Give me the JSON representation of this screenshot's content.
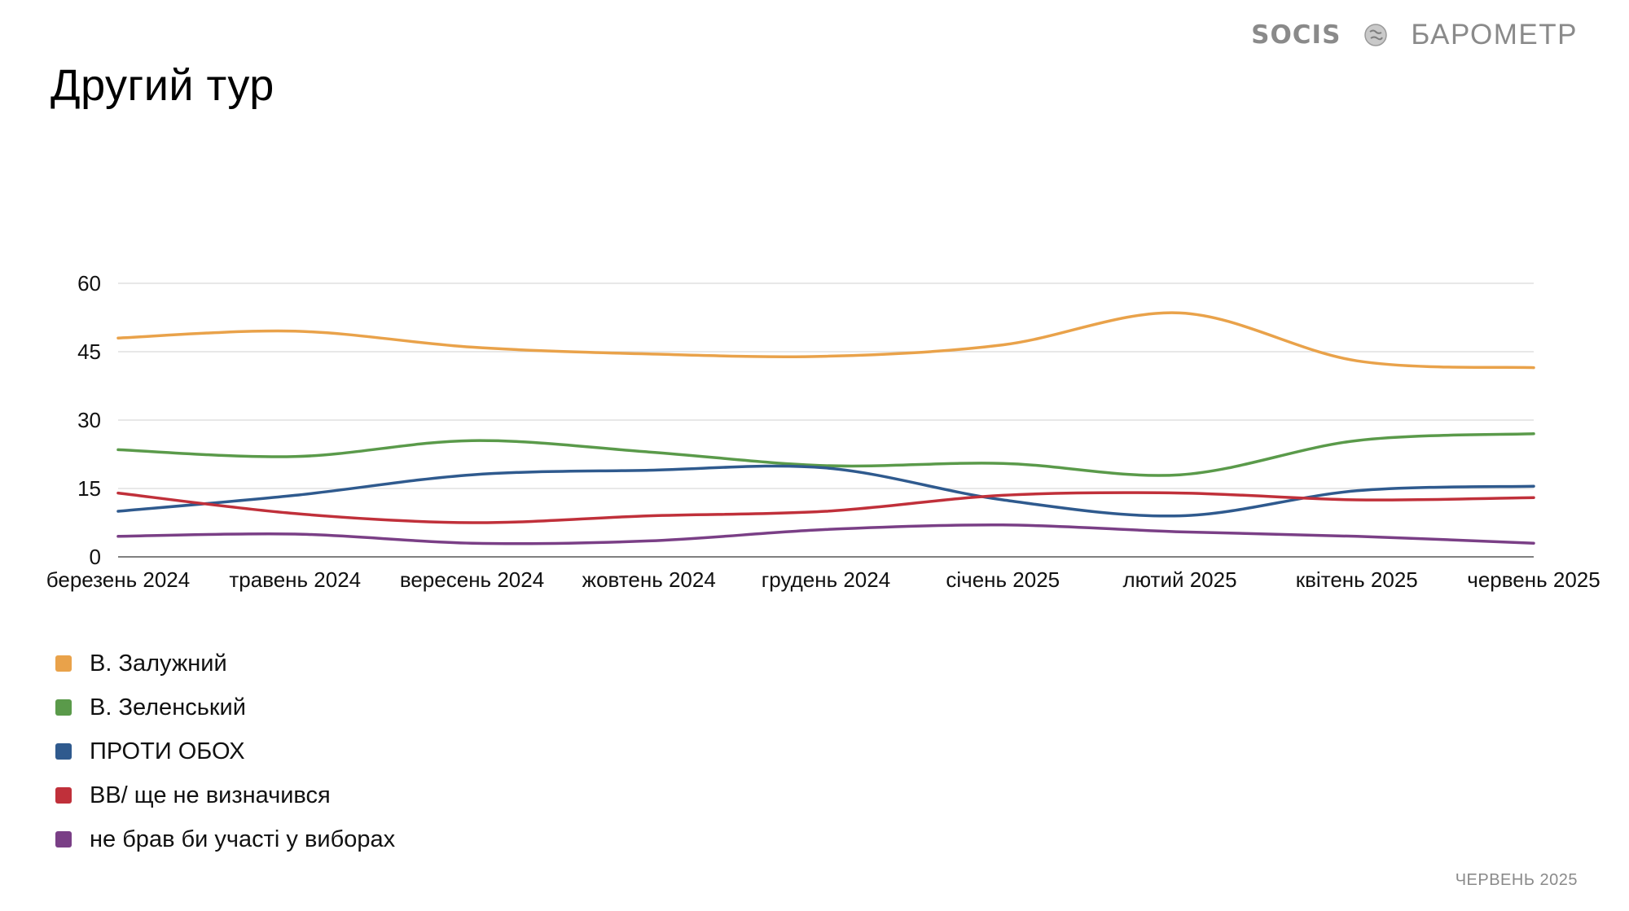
{
  "header": {
    "title": "Другий тур",
    "brand_left": "SOCIS",
    "brand_right": "БАРОМЕТР"
  },
  "footer": {
    "date": "ЧЕРВЕНЬ 2025"
  },
  "chart_data": {
    "type": "line",
    "smooth": true,
    "title": "",
    "xlabel": "",
    "ylabel": "",
    "ylim": [
      0,
      60
    ],
    "yticks": [
      0,
      15,
      30,
      45,
      60
    ],
    "grid": true,
    "legend_position": "bottom-left",
    "categories": [
      "березень 2024",
      "травень 2024",
      "вересень 2024",
      "жовтень 2024",
      "грудень 2024",
      "січень 2025",
      "лютий 2025",
      "квітень 2025",
      "червень 2025"
    ],
    "series": [
      {
        "name": "В. Залужний",
        "color": "#e9a24a",
        "values": [
          48,
          49.5,
          46,
          44.5,
          44,
          46.5,
          53.5,
          43,
          41.5
        ]
      },
      {
        "name": "В. Зеленський",
        "color": "#5a9a4a",
        "values": [
          23.5,
          22,
          25.5,
          23,
          20,
          20.5,
          18,
          25.5,
          27
        ]
      },
      {
        "name": "ПРОТИ ОБОХ",
        "color": "#2f5a8e",
        "values": [
          10,
          13.5,
          18,
          19,
          19.5,
          12.5,
          9,
          14.5,
          15.5
        ]
      },
      {
        "name": "ВВ/ ще не визначився",
        "color": "#c0303a",
        "values": [
          14,
          9.5,
          7.5,
          9,
          10,
          13.5,
          14,
          12.5,
          13
        ]
      },
      {
        "name": "не брав би участі у виборах",
        "color": "#7a3f86",
        "values": [
          4.5,
          5,
          3,
          3.5,
          6,
          7,
          5.5,
          4.5,
          3
        ]
      }
    ]
  }
}
